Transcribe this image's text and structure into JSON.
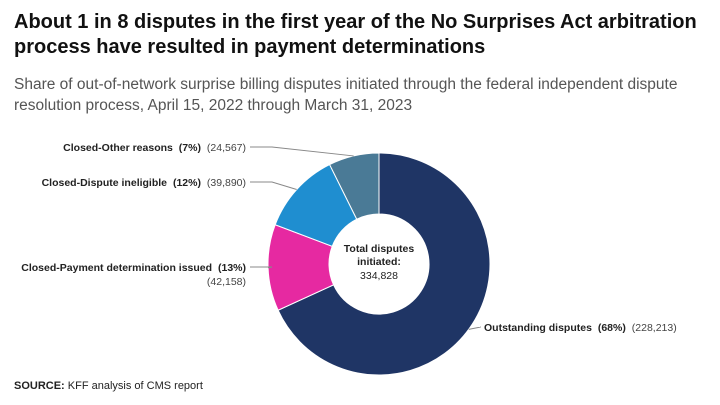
{
  "title": "About 1 in 8 disputes in the first year of the No Surprises Act arbitration process have resulted in payment determinations",
  "subtitle": "Share of out-of-network surprise billing disputes initiated through the federal independent dispute resolution process, April 15, 2022 through March 31, 2023",
  "source": {
    "label": "SOURCE:",
    "text": "KFF analysis of CMS report"
  },
  "colors": {
    "outstanding": "#1f3565",
    "payment": "#e629a1",
    "ineligible": "#1f8ed0",
    "other": "#4a7a96",
    "leader": "#888888"
  },
  "chart_data": {
    "type": "pie",
    "donut": true,
    "center_label": {
      "line1": "Total disputes",
      "line2": "initiated:",
      "value": "334,828"
    },
    "slices": [
      {
        "name": "Outstanding disputes",
        "percent": 68,
        "percent_label": "(68%)",
        "count": 228213,
        "count_label": "(228,213)"
      },
      {
        "name": "Closed-Payment determination issued",
        "percent": 13,
        "percent_label": "(13%)",
        "count": 42158,
        "count_label": "(42,158)"
      },
      {
        "name": "Closed-Dispute ineligible",
        "percent": 12,
        "percent_label": "(12%)",
        "count": 39890,
        "count_label": "(39,890)"
      },
      {
        "name": "Closed-Other reasons",
        "percent": 7,
        "percent_label": "(7%)",
        "count": 24567,
        "count_label": "(24,567)"
      }
    ]
  }
}
